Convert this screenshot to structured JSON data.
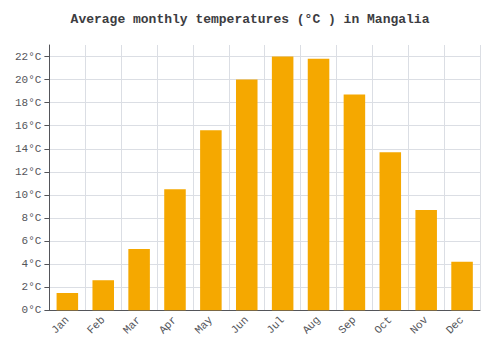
{
  "chart_data": {
    "type": "bar",
    "title": "Average monthly temperatures (°C ) in Mangalia",
    "categories": [
      "Jan",
      "Feb",
      "Mar",
      "Apr",
      "May",
      "Jun",
      "Jul",
      "Aug",
      "Sep",
      "Oct",
      "Nov",
      "Dec"
    ],
    "values": [
      1.5,
      2.6,
      5.3,
      10.5,
      15.6,
      20.0,
      22.0,
      21.8,
      18.7,
      13.7,
      8.7,
      4.2
    ],
    "color": "#F5A800",
    "ylim": [
      0,
      23
    ],
    "yticks": [
      {
        "value": 0,
        "label": "0°C"
      },
      {
        "value": 2,
        "label": "2°C"
      },
      {
        "value": 4,
        "label": "4°C"
      },
      {
        "value": 6,
        "label": "6°C"
      },
      {
        "value": 8,
        "label": "8°C"
      },
      {
        "value": 10,
        "label": "10°C"
      },
      {
        "value": 12,
        "label": "12°C"
      },
      {
        "value": 14,
        "label": "14°C"
      },
      {
        "value": 16,
        "label": "16°C"
      },
      {
        "value": 18,
        "label": "18°C"
      },
      {
        "value": 20,
        "label": "20°C"
      },
      {
        "value": 22,
        "label": "22°C"
      }
    ],
    "grid": true
  }
}
